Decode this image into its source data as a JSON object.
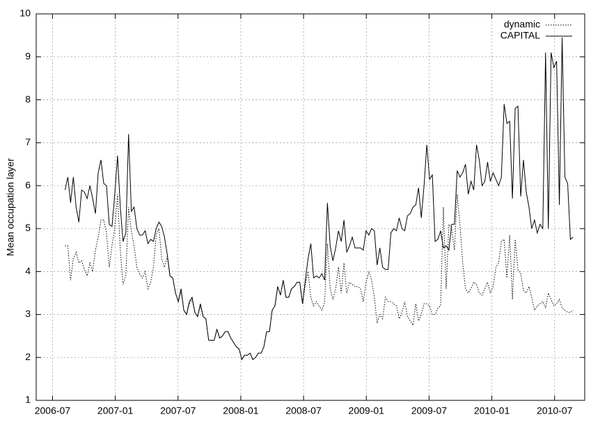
{
  "chart_data": {
    "type": "line",
    "ylabel": "Mean occupation layer",
    "xlim": [
      2006.37,
      2010.74
    ],
    "ylim": [
      1,
      10
    ],
    "yticks": [
      1,
      2,
      3,
      4,
      5,
      6,
      7,
      8,
      9,
      10
    ],
    "xticks": [
      {
        "value": 2006.5,
        "label": "2006-07"
      },
      {
        "value": 2007.0,
        "label": "2007-01"
      },
      {
        "value": 2007.5,
        "label": "2007-07"
      },
      {
        "value": 2008.0,
        "label": "2008-01"
      },
      {
        "value": 2008.5,
        "label": "2008-07"
      },
      {
        "value": 2009.0,
        "label": "2009-01"
      },
      {
        "value": 2009.5,
        "label": "2009-07"
      },
      {
        "value": 2010.0,
        "label": "2010-01"
      },
      {
        "value": 2010.5,
        "label": "2010-07"
      }
    ],
    "grid": true,
    "legend": "top-right",
    "x": [
      2006.6,
      2006.622,
      2006.644,
      2006.666,
      2006.688,
      2006.71,
      2006.732,
      2006.754,
      2006.776,
      2006.798,
      2006.82,
      2006.842,
      2006.864,
      2006.886,
      2006.908,
      2006.93,
      2006.952,
      2006.974,
      2006.996,
      2007.018,
      2007.04,
      2007.062,
      2007.084,
      2007.106,
      2007.128,
      2007.15,
      2007.172,
      2007.194,
      2007.216,
      2007.238,
      2007.26,
      2007.282,
      2007.304,
      2007.326,
      2007.348,
      2007.37,
      2007.392,
      2007.414,
      2007.436,
      2007.458,
      2007.48,
      2007.502,
      2007.524,
      2007.546,
      2007.568,
      2007.59,
      2007.612,
      2007.634,
      2007.656,
      2007.678,
      2007.7,
      2007.722,
      2007.744,
      2007.766,
      2007.788,
      2007.81,
      2007.832,
      2007.854,
      2007.876,
      2007.898,
      2007.92,
      2007.942,
      2007.964,
      2007.986,
      2008.008,
      2008.03,
      2008.052,
      2008.074,
      2008.096,
      2008.118,
      2008.14,
      2008.162,
      2008.184,
      2008.206,
      2008.228,
      2008.25,
      2008.272,
      2008.294,
      2008.316,
      2008.338,
      2008.36,
      2008.382,
      2008.404,
      2008.426,
      2008.448,
      2008.47,
      2008.492,
      2008.514,
      2008.536,
      2008.558,
      2008.58,
      2008.602,
      2008.624,
      2008.646,
      2008.668,
      2008.69,
      2008.712,
      2008.734,
      2008.756,
      2008.778,
      2008.8,
      2008.822,
      2008.844,
      2008.866,
      2008.888,
      2008.91,
      2008.932,
      2008.954,
      2008.976,
      2008.998,
      2009.02,
      2009.042,
      2009.064,
      2009.086,
      2009.108,
      2009.13,
      2009.152,
      2009.174,
      2009.196,
      2009.218,
      2009.24,
      2009.262,
      2009.284,
      2009.306,
      2009.328,
      2009.35,
      2009.372,
      2009.394,
      2009.416,
      2009.438,
      2009.46,
      2009.482,
      2009.504,
      2009.526,
      2009.548,
      2009.57,
      2009.592,
      2009.614,
      2009.636,
      2009.658,
      2009.68,
      2009.702,
      2009.724,
      2009.746,
      2009.768,
      2009.79,
      2009.812,
      2009.834,
      2009.856,
      2009.878,
      2009.9,
      2009.922,
      2009.944,
      2009.966,
      2009.988,
      2010.01,
      2010.032,
      2010.054,
      2010.076,
      2010.098,
      2010.12,
      2010.142,
      2010.164,
      2010.186,
      2010.208,
      2010.23,
      2010.252,
      2010.274,
      2010.296,
      2010.318,
      2010.34,
      2010.362,
      2010.384,
      2010.406,
      2010.428,
      2010.45,
      2010.472,
      2010.494,
      2010.516,
      2010.538,
      2010.56,
      2010.582,
      2010.604,
      2010.626,
      2010.648
    ],
    "series": [
      {
        "name": "dynamic",
        "color": "#000000",
        "dash": "dotted",
        "values": [
          4.6,
          4.6,
          3.8,
          4.3,
          4.45,
          4.2,
          4.25,
          4.05,
          3.9,
          4.2,
          4.0,
          4.5,
          4.8,
          5.2,
          5.2,
          4.9,
          4.1,
          4.6,
          5.0,
          5.8,
          4.5,
          3.7,
          3.9,
          5.5,
          4.95,
          4.6,
          4.1,
          3.95,
          3.85,
          4.0,
          3.6,
          3.75,
          4.1,
          4.85,
          5.0,
          4.3,
          4.1,
          4.35,
          3.9,
          3.85,
          3.5,
          3.3,
          3.55,
          3.1,
          3.0,
          3.25,
          3.35,
          3.05,
          2.95,
          3.2,
          2.95,
          2.9,
          2.4,
          2.4,
          2.4,
          2.65,
          2.45,
          2.5,
          2.6,
          2.6,
          2.45,
          2.35,
          2.25,
          2.2,
          1.95,
          2.05,
          2.05,
          2.1,
          1.95,
          2.0,
          2.1,
          2.1,
          2.25,
          2.6,
          2.6,
          3.1,
          3.2,
          3.65,
          3.45,
          3.8,
          3.4,
          3.4,
          3.6,
          3.65,
          3.75,
          3.75,
          3.25,
          3.7,
          4.0,
          3.4,
          3.2,
          3.3,
          3.2,
          3.1,
          3.3,
          4.65,
          3.6,
          3.35,
          3.6,
          4.1,
          3.5,
          4.2,
          3.5,
          3.75,
          3.7,
          3.65,
          3.65,
          3.6,
          3.3,
          3.75,
          4.0,
          3.8,
          3.4,
          2.8,
          3.0,
          2.9,
          3.4,
          3.3,
          3.3,
          3.25,
          3.2,
          2.9,
          3.05,
          3.3,
          2.95,
          2.85,
          2.75,
          3.25,
          2.85,
          3.0,
          3.25,
          3.25,
          3.2,
          3.0,
          3.0,
          3.15,
          3.2,
          5.5,
          3.6,
          5.1,
          5.0,
          4.5,
          5.8,
          5.1,
          4.2,
          3.6,
          3.5,
          3.6,
          3.75,
          3.7,
          3.5,
          3.45,
          3.6,
          3.75,
          3.5,
          3.65,
          4.1,
          4.2,
          4.7,
          4.75,
          3.85,
          4.85,
          3.35,
          4.75,
          4.05,
          3.95,
          3.55,
          3.5,
          3.65,
          3.4,
          3.1,
          3.2,
          3.25,
          3.3,
          3.15,
          3.5,
          3.35,
          3.2,
          3.25,
          3.35,
          3.15,
          3.1,
          3.05,
          3.05,
          3.1
        ]
      },
      {
        "name": "CAPITAL",
        "color": "#000000",
        "dash": "solid",
        "values": [
          5.9,
          6.2,
          5.6,
          6.2,
          5.5,
          5.15,
          5.9,
          5.85,
          5.7,
          6.0,
          5.7,
          5.35,
          6.3,
          6.6,
          6.05,
          6.0,
          5.1,
          5.05,
          5.8,
          6.7,
          5.5,
          4.7,
          4.9,
          7.2,
          5.4,
          5.5,
          5.0,
          4.85,
          4.85,
          4.95,
          4.65,
          4.75,
          4.7,
          5.0,
          5.15,
          5.05,
          4.8,
          4.4,
          3.9,
          3.85,
          3.5,
          3.3,
          3.6,
          3.1,
          3.0,
          3.3,
          3.4,
          3.05,
          2.95,
          3.25,
          2.95,
          2.9,
          2.4,
          2.4,
          2.4,
          2.65,
          2.45,
          2.5,
          2.6,
          2.6,
          2.45,
          2.35,
          2.25,
          2.2,
          1.95,
          2.05,
          2.05,
          2.1,
          1.95,
          2.0,
          2.1,
          2.1,
          2.25,
          2.6,
          2.6,
          3.1,
          3.2,
          3.65,
          3.45,
          3.8,
          3.4,
          3.4,
          3.6,
          3.65,
          3.75,
          3.75,
          3.25,
          3.8,
          4.3,
          4.65,
          3.85,
          3.9,
          3.85,
          3.95,
          3.8,
          5.6,
          4.6,
          4.25,
          4.55,
          4.95,
          4.7,
          5.2,
          4.45,
          4.6,
          4.8,
          4.55,
          4.55,
          4.55,
          4.5,
          4.95,
          4.85,
          5.0,
          4.95,
          4.15,
          4.55,
          4.1,
          4.05,
          4.05,
          4.9,
          5.0,
          4.95,
          5.25,
          5.0,
          4.95,
          5.3,
          5.35,
          5.5,
          5.55,
          5.95,
          5.25,
          6.0,
          6.95,
          6.15,
          6.25,
          4.7,
          4.75,
          4.95,
          4.55,
          4.6,
          4.5,
          5.1,
          5.1,
          6.35,
          6.2,
          6.3,
          6.5,
          5.8,
          6.1,
          5.9,
          6.95,
          6.6,
          6.0,
          6.1,
          6.55,
          6.1,
          6.3,
          6.15,
          6.0,
          6.2,
          7.9,
          7.45,
          7.5,
          5.7,
          7.8,
          7.85,
          5.75,
          6.6,
          5.85,
          5.5,
          5.0,
          5.2,
          4.9,
          5.1,
          5.0,
          9.1,
          5.0,
          9.1,
          8.75,
          8.9,
          5.55,
          9.45,
          6.2,
          6.05,
          4.75,
          4.8
        ]
      }
    ]
  }
}
